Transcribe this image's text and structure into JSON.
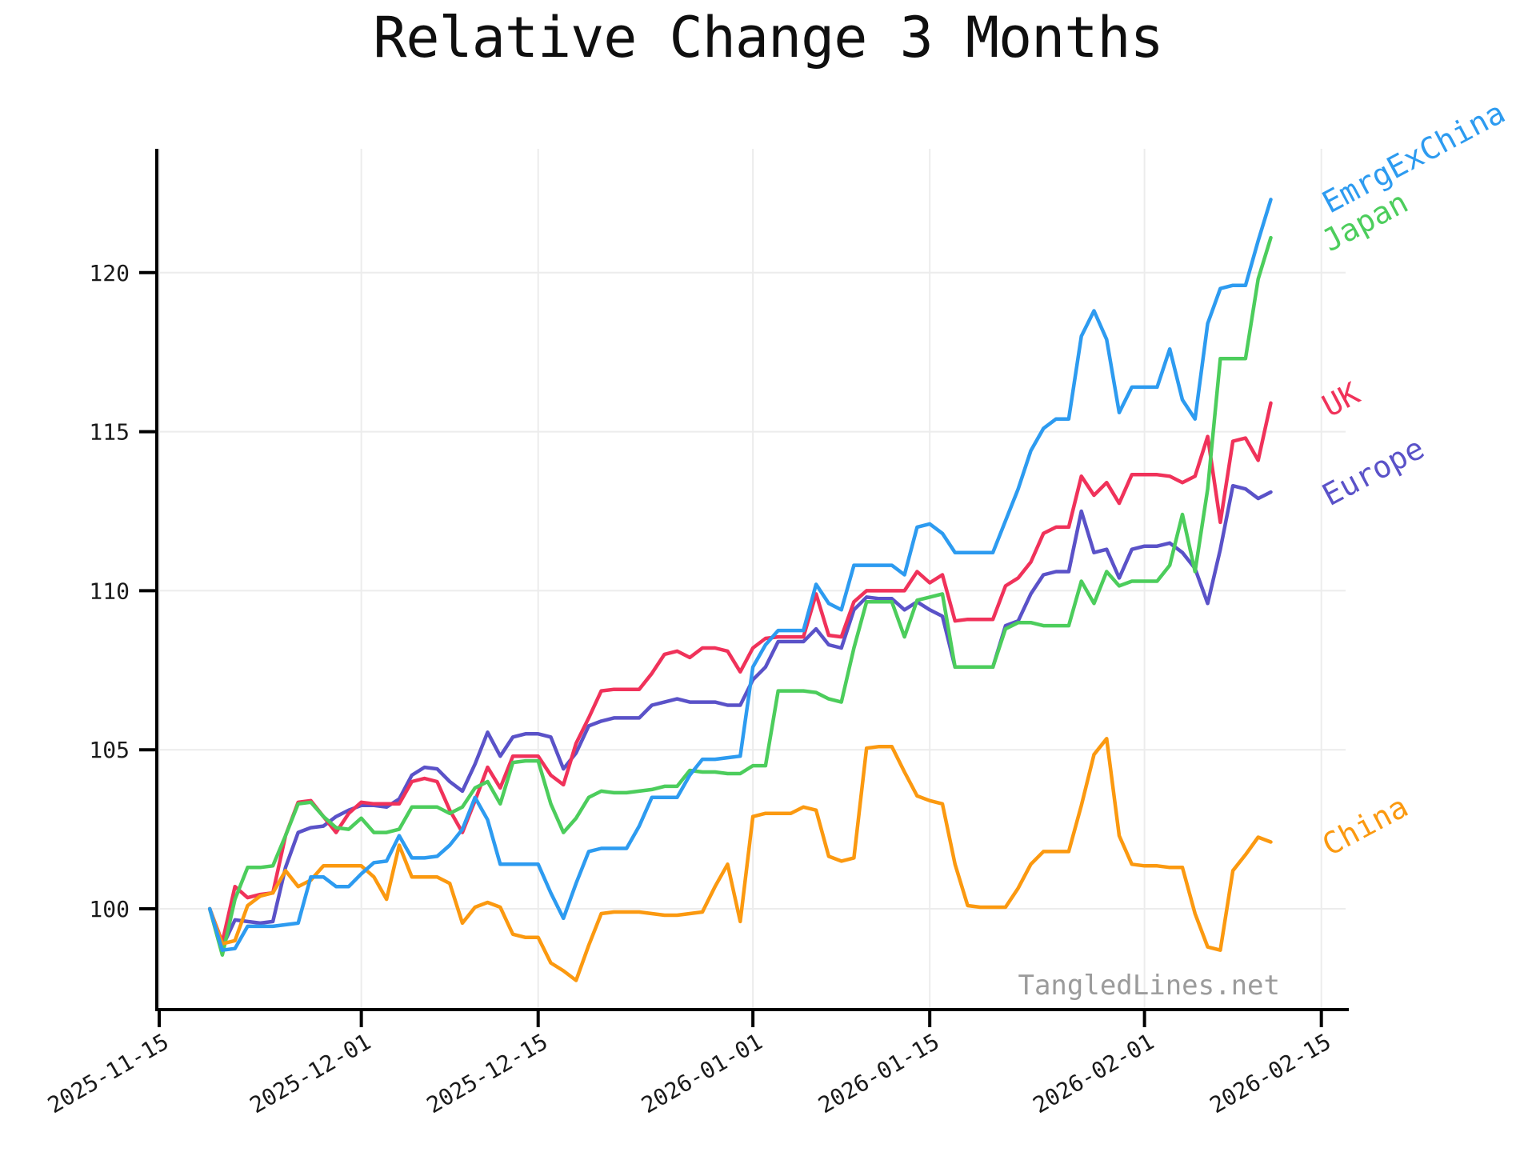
{
  "title": "Relative Change 3 Months",
  "watermark": "TangledLines.net",
  "chart_data": {
    "type": "line",
    "title": "Relative Change 3 Months",
    "xlabel": "",
    "ylabel": "",
    "grid": true,
    "background": "#ffffff",
    "grid_color": "#ececec",
    "axis_color": "#000000",
    "tick_label_color": "#1a1a1a",
    "y_ticks": [
      100,
      105,
      110,
      115,
      120
    ],
    "ylim": [
      96.8,
      123.9
    ],
    "x_tick_labels": [
      "2025-11-15",
      "2025-12-01",
      "2025-12-15",
      "2026-01-01",
      "2026-01-15",
      "2026-02-01",
      "2026-02-15"
    ],
    "x_axis_start": "2025-11-15",
    "x_axis_end": "2026-02-17",
    "data_start_date": "2025-11-19",
    "data_end_date": "2026-02-11",
    "sampling": "daily",
    "legend_position": "labels at right end of each line, rotated",
    "series": [
      {
        "name": "Europe",
        "color": "#5a52c8",
        "values": [
          100.0,
          98.8,
          99.65,
          99.6,
          99.55,
          99.6,
          101.3,
          102.4,
          102.55,
          102.6,
          102.9,
          103.1,
          103.25,
          103.25,
          103.2,
          103.45,
          104.2,
          104.45,
          104.4,
          104.0,
          103.7,
          104.55,
          105.55,
          104.8,
          105.4,
          105.5,
          105.5,
          105.4,
          104.4,
          104.9,
          105.75,
          105.9,
          106.0,
          106.0,
          106.0,
          106.4,
          106.5,
          106.6,
          106.5,
          106.5,
          106.5,
          106.4,
          106.4,
          107.2,
          107.6,
          108.4,
          108.4,
          108.4,
          108.8,
          108.3,
          108.2,
          109.4,
          109.8,
          109.75,
          109.75,
          109.4,
          109.65,
          109.4,
          109.2,
          107.6,
          107.6,
          107.6,
          107.6,
          108.9,
          109.05,
          109.9,
          110.5,
          110.6,
          110.6,
          112.5,
          111.2,
          111.3,
          110.4,
          111.3,
          111.4,
          111.4,
          111.5,
          111.2,
          110.7,
          109.6,
          111.3,
          113.3,
          113.2,
          112.9,
          113.1
        ]
      },
      {
        "name": "UK",
        "color": "#f0325a",
        "values": [
          100.0,
          98.95,
          100.7,
          100.35,
          100.45,
          100.5,
          102.3,
          103.35,
          103.4,
          102.9,
          102.4,
          103.0,
          103.35,
          103.3,
          103.3,
          103.3,
          104.0,
          104.1,
          104.0,
          103.1,
          102.4,
          103.4,
          104.45,
          103.8,
          104.8,
          104.8,
          104.8,
          104.2,
          103.9,
          105.2,
          106.0,
          106.85,
          106.9,
          106.9,
          106.9,
          107.4,
          108.0,
          108.1,
          107.9,
          108.2,
          108.2,
          108.1,
          107.45,
          108.2,
          108.5,
          108.55,
          108.55,
          108.55,
          109.9,
          108.6,
          108.55,
          109.65,
          110.0,
          110.0,
          110.0,
          110.0,
          110.6,
          110.25,
          110.5,
          109.05,
          109.1,
          109.1,
          109.1,
          110.15,
          110.4,
          110.9,
          111.8,
          112.0,
          112.0,
          113.6,
          113.0,
          113.4,
          112.75,
          113.65,
          113.65,
          113.65,
          113.6,
          113.4,
          113.6,
          114.85,
          112.15,
          114.7,
          114.8,
          114.1,
          115.9
        ]
      },
      {
        "name": "Japan",
        "color": "#4ccd5c",
        "values": [
          100.0,
          98.55,
          100.3,
          101.3,
          101.3,
          101.35,
          102.3,
          103.3,
          103.35,
          102.9,
          102.55,
          102.5,
          102.85,
          102.4,
          102.4,
          102.5,
          103.2,
          103.2,
          103.2,
          103.0,
          103.2,
          103.8,
          104.0,
          103.3,
          104.6,
          104.65,
          104.65,
          103.3,
          102.4,
          102.85,
          103.5,
          103.7,
          103.65,
          103.65,
          103.7,
          103.75,
          103.85,
          103.85,
          104.35,
          104.3,
          104.3,
          104.25,
          104.25,
          104.5,
          104.5,
          106.85,
          106.85,
          106.85,
          106.8,
          106.6,
          106.5,
          108.2,
          109.65,
          109.65,
          109.65,
          108.55,
          109.7,
          109.8,
          109.9,
          107.6,
          107.6,
          107.6,
          107.6,
          108.8,
          109.0,
          109.0,
          108.9,
          108.9,
          108.9,
          110.3,
          109.6,
          110.6,
          110.15,
          110.3,
          110.3,
          110.3,
          110.8,
          112.4,
          110.6,
          113.2,
          117.3,
          117.3,
          117.3,
          119.8,
          121.1
        ]
      },
      {
        "name": "China",
        "color": "#fb9910",
        "values": [
          100.0,
          98.9,
          99.0,
          100.1,
          100.4,
          100.5,
          101.2,
          100.7,
          100.9,
          101.35,
          101.35,
          101.35,
          101.35,
          101.0,
          100.3,
          102.0,
          101.0,
          101.0,
          101.0,
          100.8,
          99.55,
          100.05,
          100.2,
          100.05,
          99.2,
          99.1,
          99.1,
          98.3,
          98.05,
          97.75,
          98.85,
          99.85,
          99.9,
          99.9,
          99.9,
          99.85,
          99.8,
          99.8,
          99.85,
          99.9,
          100.7,
          101.4,
          99.6,
          102.9,
          103.0,
          103.0,
          103.0,
          103.2,
          103.1,
          101.65,
          101.5,
          101.6,
          105.05,
          105.1,
          105.1,
          104.3,
          103.55,
          103.4,
          103.3,
          101.4,
          100.1,
          100.05,
          100.05,
          100.05,
          100.65,
          101.4,
          101.8,
          101.8,
          101.8,
          103.25,
          104.85,
          105.35,
          102.3,
          101.4,
          101.35,
          101.35,
          101.3,
          101.3,
          99.85,
          98.8,
          98.7,
          101.2,
          101.7,
          102.25,
          102.1
        ]
      },
      {
        "name": "EmrgExChina",
        "color": "#2d9bf0",
        "values": [
          100.0,
          98.7,
          98.75,
          99.45,
          99.45,
          99.45,
          99.5,
          99.55,
          101.0,
          101.0,
          100.7,
          100.7,
          101.1,
          101.45,
          101.5,
          102.3,
          101.6,
          101.6,
          101.65,
          102.0,
          102.5,
          103.5,
          102.8,
          101.4,
          101.4,
          101.4,
          101.4,
          100.5,
          99.7,
          100.8,
          101.8,
          101.9,
          101.9,
          101.9,
          102.6,
          103.5,
          103.5,
          103.5,
          104.2,
          104.7,
          104.7,
          104.75,
          104.8,
          107.6,
          108.3,
          108.75,
          108.75,
          108.75,
          110.2,
          109.6,
          109.4,
          110.8,
          110.8,
          110.8,
          110.8,
          110.5,
          112.0,
          112.1,
          111.8,
          111.2,
          111.2,
          111.2,
          111.2,
          112.2,
          113.2,
          114.4,
          115.1,
          115.4,
          115.4,
          118.0,
          118.8,
          117.9,
          115.6,
          116.4,
          116.4,
          116.4,
          117.6,
          116.0,
          115.4,
          118.4,
          119.5,
          119.6,
          119.6,
          121.0,
          122.3
        ]
      }
    ]
  }
}
